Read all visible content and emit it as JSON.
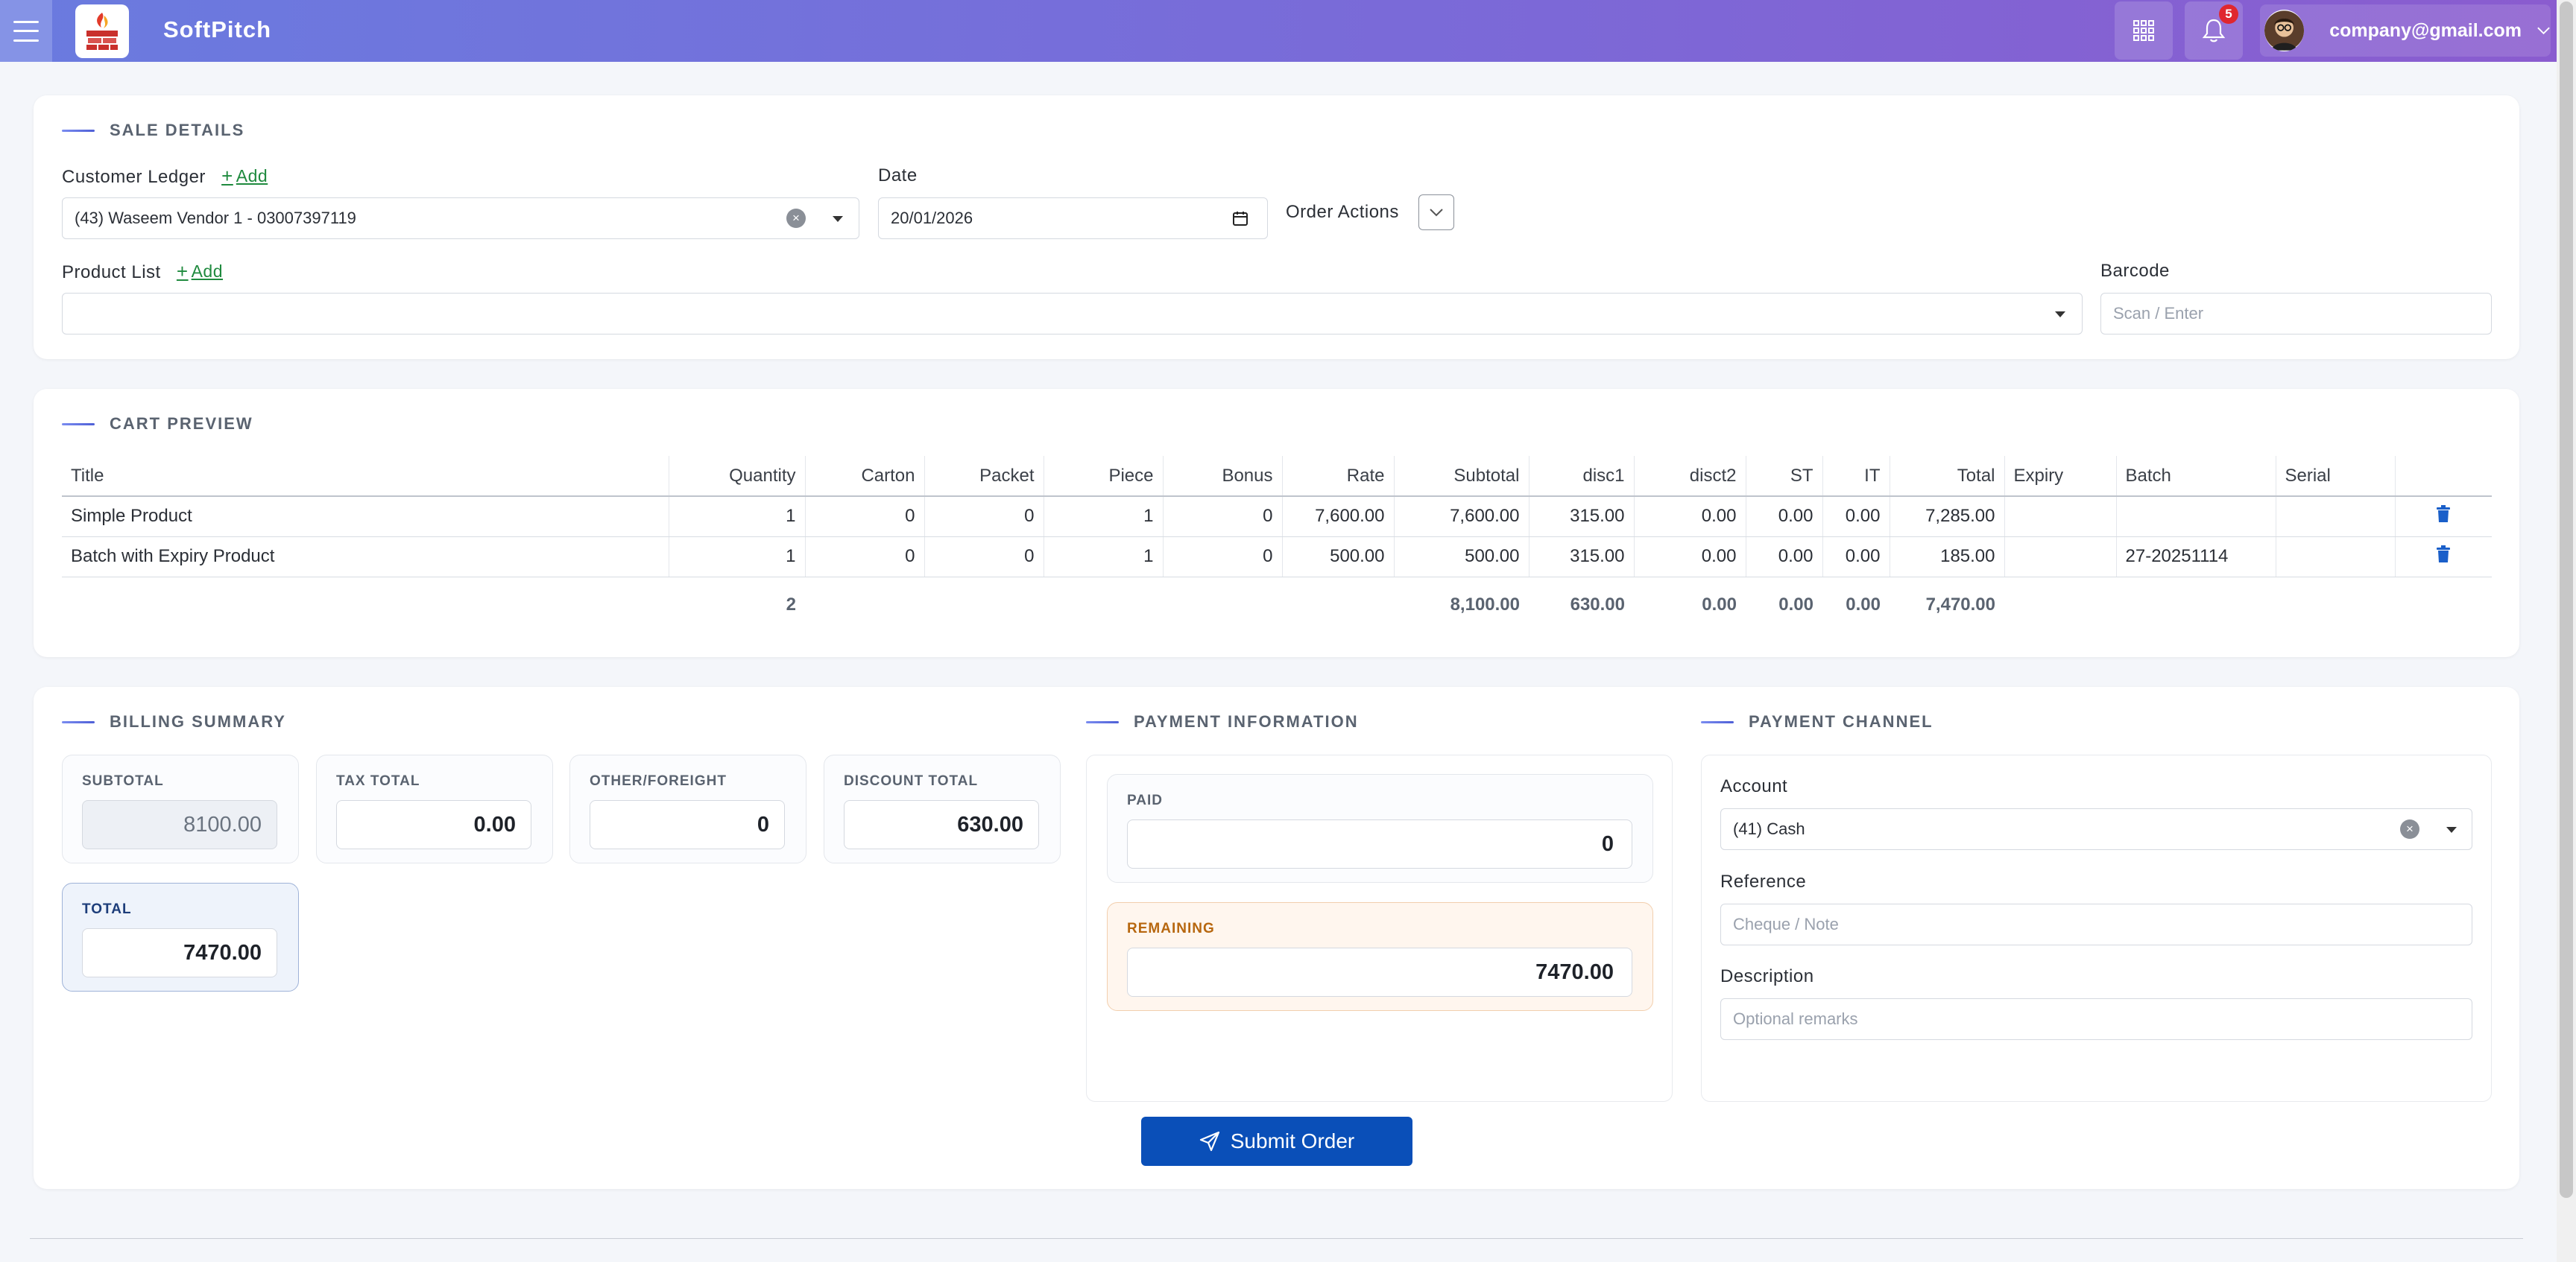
{
  "app": {
    "brand": "SoftPitch"
  },
  "header": {
    "notification_count": "5",
    "user_email": "company@gmail.com",
    "icons": [
      "menu-icon",
      "apps-grid-icon",
      "bell-icon",
      "avatar",
      "chevron-down-icon"
    ]
  },
  "sale_details": {
    "title": "SALE DETAILS",
    "customer_label": "Customer Ledger",
    "add_label": "Add",
    "customer_value": "(43) Waseem Vendor 1 - 03007397119",
    "date_label": "Date",
    "date_value": "20/01/2026",
    "order_actions_label": "Order Actions",
    "product_label": "Product List",
    "product_value": "",
    "barcode_label": "Barcode",
    "barcode_placeholder": "Scan / Enter"
  },
  "cart": {
    "title": "CART PREVIEW",
    "columns": [
      "Title",
      "Quantity",
      "Carton",
      "Packet",
      "Piece",
      "Bonus",
      "Rate",
      "Subtotal",
      "disc1",
      "disct2",
      "ST",
      "IT",
      "Total",
      "Expiry",
      "Batch",
      "Serial",
      ""
    ],
    "rows": [
      [
        "Simple Product",
        "1",
        "0",
        "0",
        "1",
        "0",
        "7,600.00",
        "7,600.00",
        "315.00",
        "0.00",
        "0.00",
        "0.00",
        "7,285.00",
        "",
        "",
        ""
      ],
      [
        "Batch with Expiry Product",
        "1",
        "0",
        "0",
        "1",
        "0",
        "500.00",
        "500.00",
        "315.00",
        "0.00",
        "0.00",
        "0.00",
        "185.00",
        "",
        "27-20251114",
        ""
      ]
    ],
    "totals": {
      "quantity": "2",
      "subtotal": "8,100.00",
      "disc1": "630.00",
      "disct2": "0.00",
      "st": "0.00",
      "it": "0.00",
      "total": "7,470.00"
    }
  },
  "billing": {
    "title": "BILLING SUMMARY",
    "subtotal_label": "SUBTOTAL",
    "subtotal_value": "8100.00",
    "tax_label": "TAX TOTAL",
    "tax_value": "0.00",
    "other_label": "OTHER/FOREIGHT",
    "other_value": "0",
    "discount_label": "DISCOUNT TOTAL",
    "discount_value": "630.00",
    "total_label": "TOTAL",
    "total_value": "7470.00"
  },
  "payment": {
    "title": "PAYMENT INFORMATION",
    "paid_label": "PAID",
    "paid_value": "0",
    "remaining_label": "REMAINING",
    "remaining_value": "7470.00"
  },
  "channel": {
    "title": "PAYMENT CHANNEL",
    "account_label": "Account",
    "account_value": "(41) Cash",
    "reference_label": "Reference",
    "reference_placeholder": "Cheque / Note",
    "description_label": "Description",
    "description_placeholder": "Optional remarks"
  },
  "submit_label": "Submit Order",
  "colors": {
    "header_start": "#6a7bdf",
    "header_end": "#8a5ccf",
    "primary": "#0a4fb8",
    "add_link": "#1f8a3e",
    "badge": "#e0272f",
    "remaining": "#b7670f"
  }
}
